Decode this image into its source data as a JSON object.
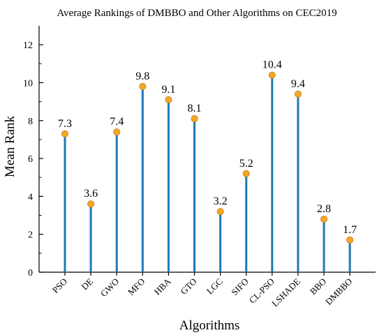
{
  "chart_data": {
    "type": "lollipop",
    "title": "Average Rankings of DMBBO and Other Algorithms on CEC2019",
    "xlabel": "Algorithms",
    "ylabel": "Mean Rank",
    "ylim": [
      0,
      13
    ],
    "yticks": [
      0,
      2,
      4,
      6,
      8,
      10,
      12
    ],
    "grid": false,
    "categories": [
      "PSO",
      "DE",
      "GWO",
      "MFO",
      "HBA",
      "GTO",
      "LGC",
      "SIFO",
      "CL-PSO",
      "LSHADE",
      "BBO",
      "DMBBO"
    ],
    "values": [
      7.3,
      3.6,
      7.4,
      9.8,
      9.1,
      8.1,
      3.2,
      5.2,
      10.4,
      9.4,
      2.8,
      1.7
    ],
    "value_labels": [
      "7.3",
      "3.6",
      "7.4",
      "9.8",
      "9.1",
      "8.1",
      "3.2",
      "5.2",
      "10.4",
      "9.4",
      "2.8",
      "1.7"
    ],
    "colors": {
      "stem": "#1f78b4",
      "marker": "#f5a623",
      "marker_edge": "#c47d10",
      "axis": "#000000"
    }
  }
}
